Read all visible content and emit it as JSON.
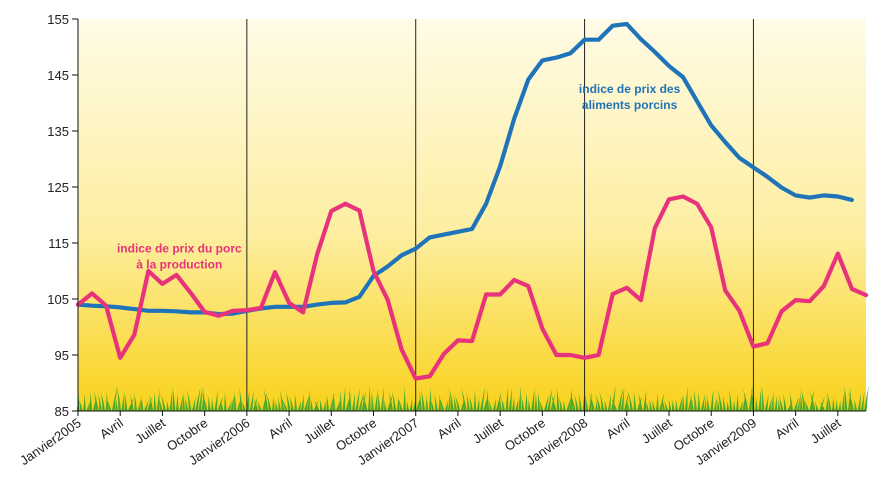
{
  "chart_data": {
    "type": "line",
    "title": "",
    "xlabel": "",
    "ylabel": "",
    "ylim": [
      85,
      155
    ],
    "yticks": [
      85,
      95,
      105,
      115,
      125,
      135,
      145,
      155
    ],
    "grid": false,
    "x_tick_labels": [
      {
        "i": 0,
        "label": "Janvier2005"
      },
      {
        "i": 3,
        "label": "Avril"
      },
      {
        "i": 6,
        "label": "Juillet"
      },
      {
        "i": 9,
        "label": "Octobre"
      },
      {
        "i": 12,
        "label": "Janvier2006"
      },
      {
        "i": 15,
        "label": "Avril"
      },
      {
        "i": 18,
        "label": "Juillet"
      },
      {
        "i": 21,
        "label": "Octobre"
      },
      {
        "i": 24,
        "label": "Janvier2007"
      },
      {
        "i": 27,
        "label": "Avril"
      },
      {
        "i": 30,
        "label": "Juillet"
      },
      {
        "i": 33,
        "label": "Octobre"
      },
      {
        "i": 36,
        "label": "Janvier2008"
      },
      {
        "i": 39,
        "label": "Avril"
      },
      {
        "i": 42,
        "label": "Juillet"
      },
      {
        "i": 45,
        "label": "Octobre"
      },
      {
        "i": 48,
        "label": "Janvier2009"
      },
      {
        "i": 51,
        "label": "Avril"
      },
      {
        "i": 54,
        "label": "Juillet"
      }
    ],
    "year_separators_at": [
      12,
      24,
      36,
      48
    ],
    "series": [
      {
        "name": "indice de prix des aliments porcins",
        "color": "#1f73b9",
        "values": [
          104.0,
          103.8,
          103.7,
          103.5,
          103.2,
          102.9,
          102.9,
          102.8,
          102.6,
          102.6,
          102.3,
          102.4,
          102.9,
          103.3,
          103.6,
          103.6,
          103.6,
          104.0,
          104.3,
          104.4,
          105.4,
          109.1,
          110.8,
          112.8,
          114.0,
          116.0,
          116.5,
          117.0,
          117.5,
          122.0,
          128.7,
          137.2,
          144.2,
          147.6,
          148.1,
          148.9,
          151.3,
          151.3,
          153.8,
          154.1,
          151.4,
          149.1,
          146.6,
          144.6,
          140.3,
          136.0,
          133.0,
          130.2,
          128.5,
          126.8,
          124.9,
          123.5,
          123.1,
          123.5,
          123.3,
          122.7
        ],
        "label_lines": [
          "indice de prix des",
          "aliments porcins"
        ],
        "label_anchor": {
          "i": 39.2,
          "y": 141.8
        }
      },
      {
        "name": "indice de prix du porc à la production",
        "color": "#e8327c",
        "values": [
          104.0,
          106.0,
          103.8,
          94.5,
          98.6,
          110.0,
          107.7,
          109.3,
          106.1,
          102.7,
          102.0,
          102.9,
          103.0,
          103.4,
          109.8,
          104.3,
          102.6,
          113.0,
          120.7,
          122.0,
          120.8,
          110.0,
          104.9,
          96.0,
          90.8,
          91.2,
          95.2,
          97.6,
          97.5,
          105.8,
          105.8,
          108.4,
          107.3,
          99.7,
          95.0,
          95.0,
          94.5,
          95.0,
          105.9,
          107.0,
          104.8,
          117.7,
          122.8,
          123.3,
          122.0,
          117.8,
          106.5,
          102.9,
          96.5,
          97.1,
          102.8,
          104.8,
          104.6,
          107.3,
          113.1,
          106.8,
          105.7
        ],
        "label_lines": [
          "indice de prix du porc",
          "à la production"
        ],
        "label_anchor": {
          "i": 7.2,
          "y": 113.3
        }
      }
    ]
  },
  "colors": {
    "background_top": "#fffbe6",
    "background_bottom": "#f9d21a",
    "grass": "#3aa52f",
    "axis": "#111111"
  }
}
